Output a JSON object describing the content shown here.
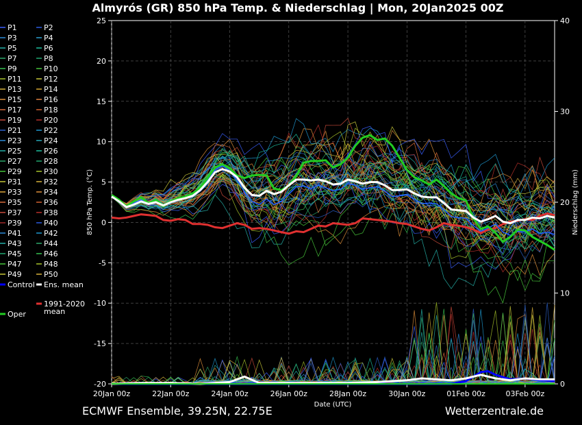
{
  "chart_data": {
    "type": "line",
    "title": "Almyrós  (GR)  850 hPa Temp. & Niederschlag | Mon, 20Jan2025 00Z",
    "xlabel": "Date (UTC)",
    "ylabel": "850 hPa Temp. (°C)",
    "y2label": "Niederschlag (mm)",
    "footer_left": "ECMWF Ensemble, 39.25N, 22.75E",
    "footer_right": "Wetterzentrale.de",
    "x_ticks": [
      "20Jan 00z",
      "22Jan 00z",
      "24Jan 00z",
      "26Jan 00z",
      "28Jan 00z",
      "30Jan 00z",
      "01Feb 00z",
      "03Feb 00z"
    ],
    "xlim_days": [
      0,
      15
    ],
    "ylim": [
      -20,
      25
    ],
    "y_ticks": [
      "25",
      "20",
      "15",
      "10",
      "5",
      "0",
      "-5",
      "-10",
      "-15",
      "-20"
    ],
    "y2lim": [
      0,
      40
    ],
    "y2_ticks": [
      "40",
      "30",
      "20",
      "10",
      "0"
    ],
    "grid": true,
    "legend_position": "left",
    "member_colors": [
      "#3a5fff",
      "#2a8bd8",
      "#24b0a8",
      "#2ca86a",
      "#46c63a",
      "#a8c42a",
      "#d8b23a",
      "#e0903a",
      "#d86a3a",
      "#c84a3a",
      "#b8302a",
      "#2a60c8",
      "#1e98d0",
      "#1cc0a0",
      "#36c050",
      "#c8c838"
    ],
    "legend": [
      {
        "label": "P1",
        "color": "#3a5fff"
      },
      {
        "label": "P2",
        "color": "#2a5ae0"
      },
      {
        "label": "P3",
        "color": "#2a8bd8"
      },
      {
        "label": "P4",
        "color": "#2a9fd0"
      },
      {
        "label": "P5",
        "color": "#24b0a8"
      },
      {
        "label": "P6",
        "color": "#1cc0a0"
      },
      {
        "label": "P7",
        "color": "#2ca86a"
      },
      {
        "label": "P8",
        "color": "#20a870"
      },
      {
        "label": "P9",
        "color": "#36c050"
      },
      {
        "label": "P10",
        "color": "#46c63a"
      },
      {
        "label": "P11",
        "color": "#a8c42a"
      },
      {
        "label": "P12",
        "color": "#c8c838"
      },
      {
        "label": "P13",
        "color": "#d8b23a"
      },
      {
        "label": "P14",
        "color": "#d8a830"
      },
      {
        "label": "P15",
        "color": "#e0903a"
      },
      {
        "label": "P16",
        "color": "#e08040"
      },
      {
        "label": "P17",
        "color": "#d86a3a"
      },
      {
        "label": "P18",
        "color": "#d06030"
      },
      {
        "label": "P19",
        "color": "#c84a3a"
      },
      {
        "label": "P20",
        "color": "#b8302a"
      },
      {
        "label": "P21",
        "color": "#2a60c8"
      },
      {
        "label": "P22",
        "color": "#1e98d0"
      },
      {
        "label": "P23",
        "color": "#2a8bd8"
      },
      {
        "label": "P24",
        "color": "#24a8b8"
      },
      {
        "label": "P25",
        "color": "#24b0a8"
      },
      {
        "label": "P26",
        "color": "#1cc0a0"
      },
      {
        "label": "P27",
        "color": "#2ca86a"
      },
      {
        "label": "P28",
        "color": "#20a870"
      },
      {
        "label": "P29",
        "color": "#46c63a"
      },
      {
        "label": "P30",
        "color": "#a8c42a"
      },
      {
        "label": "P31",
        "color": "#c8c838"
      },
      {
        "label": "P32",
        "color": "#d8b23a"
      },
      {
        "label": "P33",
        "color": "#e0a83a"
      },
      {
        "label": "P34",
        "color": "#e0903a"
      },
      {
        "label": "P35",
        "color": "#d86a3a"
      },
      {
        "label": "P36",
        "color": "#d06030"
      },
      {
        "label": "P37",
        "color": "#c84a3a"
      },
      {
        "label": "P38",
        "color": "#b8302a"
      },
      {
        "label": "P39",
        "color": "#a02828"
      },
      {
        "label": "P40",
        "color": "#2a5ae0"
      },
      {
        "label": "P41",
        "color": "#2a8bd8"
      },
      {
        "label": "P42",
        "color": "#1e98d0"
      },
      {
        "label": "P43",
        "color": "#24b0a8"
      },
      {
        "label": "P44",
        "color": "#2ca86a"
      },
      {
        "label": "P45",
        "color": "#20a870"
      },
      {
        "label": "P46",
        "color": "#36c050"
      },
      {
        "label": "P47",
        "color": "#46c63a"
      },
      {
        "label": "P48",
        "color": "#a8c42a"
      },
      {
        "label": "P49",
        "color": "#c8c838"
      },
      {
        "label": "P50",
        "color": "#d8b23a"
      },
      {
        "label": "Control",
        "color": "#0000ff"
      },
      {
        "label": "Ens. mean",
        "color": "#ffffff"
      },
      {
        "label": "1991-2020 mean",
        "color": "#e03030"
      },
      {
        "label": "Oper",
        "color": "#22cc22"
      }
    ],
    "ens_mean": {
      "x": [
        0,
        0.25,
        0.5,
        0.75,
        1,
        1.25,
        1.5,
        1.75,
        2,
        2.25,
        2.5,
        2.75,
        3,
        3.25,
        3.5,
        3.75,
        4,
        4.25,
        4.5,
        4.75,
        5,
        5.25,
        5.5,
        5.75,
        6,
        6.25,
        6.5,
        6.75,
        7,
        7.25,
        7.5,
        7.75,
        8,
        8.25,
        8.5,
        8.75,
        9,
        9.25,
        9.5,
        9.75,
        10,
        10.25,
        10.5,
        10.75,
        11,
        11.25,
        11.5,
        11.75,
        12,
        12.25,
        12.5,
        12.75,
        13,
        13.25,
        13.5,
        13.75,
        14,
        14.25,
        14.5,
        14.75,
        15
      ],
      "y": [
        3.2,
        2.6,
        1.9,
        2.2,
        2.6,
        2.3,
        2.5,
        2.1,
        2.5,
        2.8,
        3.0,
        3.3,
        4.0,
        5.0,
        6.2,
        6.6,
        6.3,
        5.6,
        4.3,
        3.4,
        3.3,
        3.9,
        3.5,
        3.8,
        4.6,
        5.3,
        5.3,
        5.2,
        5.3,
        5.1,
        4.7,
        4.8,
        5.3,
        5.1,
        4.8,
        5.0,
        5.0,
        4.6,
        4.0,
        4.0,
        4.1,
        3.6,
        3.2,
        3.1,
        3.1,
        2.4,
        1.6,
        1.5,
        1.4,
        0.6,
        0.1,
        0.4,
        0.8,
        0.1,
        -0.1,
        0.3,
        0.3,
        0.6,
        0.5,
        0.8,
        0.6
      ]
    },
    "oper": {
      "x": [
        0,
        0.25,
        0.5,
        0.75,
        1,
        1.25,
        1.5,
        1.75,
        2,
        2.25,
        2.5,
        2.75,
        3,
        3.25,
        3.5,
        3.75,
        4,
        4.25,
        4.5,
        4.75,
        5,
        5.25,
        5.5,
        5.75,
        6,
        6.25,
        6.5,
        6.75,
        7,
        7.25,
        7.5,
        7.75,
        8,
        8.25,
        8.5,
        8.75,
        9,
        9.25,
        9.5,
        9.75,
        10,
        10.25,
        10.5,
        10.75,
        11,
        11.25,
        11.5,
        11.75,
        12,
        12.25,
        12.5,
        12.75,
        13,
        13.25,
        13.5,
        13.75,
        14,
        14.25,
        14.5,
        14.75,
        15
      ],
      "y": [
        3.4,
        2.8,
        2.0,
        2.6,
        3.1,
        2.4,
        2.8,
        2.0,
        2.6,
        3.0,
        3.2,
        3.6,
        4.3,
        5.5,
        6.8,
        7.2,
        6.7,
        5.8,
        5.5,
        5.8,
        5.9,
        5.8,
        4.2,
        4.0,
        4.6,
        5.7,
        7.4,
        7.6,
        7.6,
        7.7,
        6.8,
        7.2,
        8.0,
        9.5,
        10.5,
        10.8,
        10.2,
        10.4,
        9.5,
        8.0,
        6.5,
        5.6,
        5.2,
        4.7,
        5.3,
        4.5,
        3.6,
        3.0,
        2.7,
        0.5,
        -0.8,
        -0.5,
        -1.3,
        -2.4,
        -1.8,
        -0.9,
        -1.0,
        -1.8,
        -2.3,
        -2.8,
        -3.4
      ]
    },
    "control": {
      "x": [
        0,
        0.25,
        0.5,
        0.75,
        1,
        1.25,
        1.5,
        1.75,
        2,
        2.25,
        2.5,
        2.75,
        3,
        3.25,
        3.5,
        3.75,
        4,
        4.25,
        4.5,
        4.75,
        5,
        5.25,
        5.5,
        5.75,
        6,
        6.25,
        6.5,
        6.75,
        7,
        7.25,
        7.5,
        7.75,
        8,
        8.25,
        8.5,
        8.75,
        9,
        9.25,
        9.5,
        9.75,
        10,
        10.25,
        10.5,
        10.75,
        11,
        11.25,
        11.5,
        11.75,
        12,
        12.25,
        12.5,
        12.75,
        13,
        13.25,
        13.5,
        13.75,
        14,
        14.25,
        14.5,
        14.75,
        15
      ],
      "y": [
        3.3,
        2.7,
        2.0,
        2.4,
        2.8,
        2.2,
        2.6,
        2.1,
        2.4,
        2.8,
        3.0,
        3.4,
        4.1,
        5.2,
        6.5,
        7.0,
        6.4,
        5.2,
        3.8,
        2.6,
        2.2,
        2.9,
        2.2,
        2.6,
        3.5,
        4.4,
        4.5,
        4.2,
        4.6,
        4.3,
        3.9,
        4.1,
        4.8,
        4.6,
        4.1,
        4.3,
        4.4,
        3.9,
        3.2,
        3.3,
        3.4,
        2.9,
        2.3,
        2.4,
        2.3,
        1.6,
        0.7,
        0.6,
        0.5,
        -0.4,
        -1.1,
        -0.7,
        -0.2,
        -1.2,
        -1.6,
        -1.1,
        -1.2,
        -0.8,
        -1.4,
        -1.2,
        -1.5
      ]
    },
    "climate_mean": {
      "x": [
        0,
        0.25,
        0.5,
        0.75,
        1,
        1.25,
        1.5,
        1.75,
        2,
        2.25,
        2.5,
        2.75,
        3,
        3.25,
        3.5,
        3.75,
        4,
        4.25,
        4.5,
        4.75,
        5,
        5.25,
        5.5,
        5.75,
        6,
        6.25,
        6.5,
        6.75,
        7,
        7.25,
        7.5,
        7.75,
        8,
        8.25,
        8.5,
        8.75,
        9,
        9.25,
        9.5,
        9.75,
        10,
        10.25,
        10.5,
        10.75,
        11,
        11.25,
        11.5,
        11.75,
        12,
        12.25,
        12.5,
        12.75,
        13,
        13.25,
        13.5,
        13.75,
        14,
        14.25,
        14.5,
        14.75,
        15
      ],
      "y": [
        0.6,
        0.5,
        0.6,
        0.8,
        1.0,
        0.9,
        0.8,
        0.3,
        0.2,
        0.4,
        0.3,
        -0.2,
        -0.2,
        -0.3,
        -0.6,
        -0.7,
        -0.4,
        -0.1,
        -0.3,
        -0.8,
        -0.7,
        -0.8,
        -1.0,
        -1.2,
        -1.4,
        -1.1,
        -1.2,
        -0.8,
        -0.4,
        -0.5,
        -0.1,
        -0.2,
        -0.3,
        -0.1,
        0.5,
        0.4,
        0.3,
        0.2,
        0.1,
        -0.1,
        -0.2,
        -0.5,
        -0.8,
        -1.0,
        -0.6,
        -0.1,
        -0.3,
        -0.4,
        -0.6,
        -0.9,
        -1.3,
        -0.9,
        -0.7,
        -0.2,
        0.1,
        0.2,
        0.4,
        0.3,
        0.8,
        1.1,
        0.9
      ]
    },
    "precip_ens_mean": {
      "x": [
        0,
        1,
        2,
        3,
        3.5,
        4,
        4.5,
        5,
        6,
        7,
        8,
        9,
        9.5,
        10,
        10.5,
        11,
        11.5,
        12,
        12.5,
        13,
        13.5,
        14,
        14.5,
        15
      ],
      "y": [
        0,
        0.1,
        0.1,
        0,
        0.1,
        0.2,
        0.8,
        0.1,
        0.1,
        0.1,
        0.1,
        0.2,
        0.3,
        0.4,
        0.6,
        0.5,
        0.4,
        0.6,
        1.0,
        0.6,
        0.4,
        0.6,
        0.5,
        0.5
      ]
    },
    "precip_control": {
      "x": [
        0,
        1,
        2,
        3,
        4,
        5,
        6,
        7,
        8,
        9,
        10,
        11,
        11.5,
        12,
        12.5,
        12.75,
        13,
        13.5,
        14,
        14.5,
        15
      ],
      "y": [
        0,
        0,
        0,
        0,
        0,
        0,
        0,
        0,
        0,
        0,
        0,
        0,
        0,
        0.3,
        1.3,
        1.4,
        1.0,
        0.5,
        0.6,
        0.4,
        0.3
      ]
    }
  }
}
